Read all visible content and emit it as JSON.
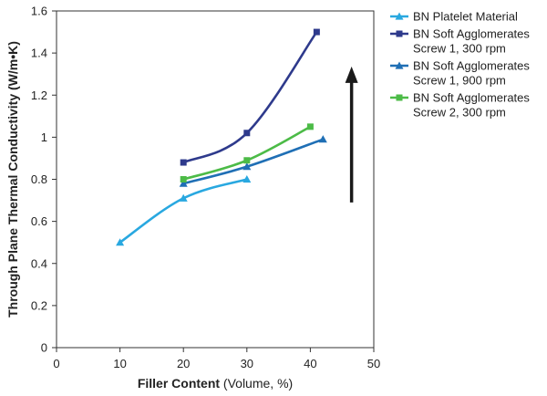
{
  "chart_data": {
    "type": "line",
    "title": "",
    "xlabel": {
      "bold": "Filler Content",
      "rest": " (Volume, %)"
    },
    "ylabel": "Through Plane Thermal Conductivity (W/m•K)",
    "xlim": [
      0,
      50
    ],
    "ylim": [
      0,
      1.6
    ],
    "xticks": [
      0,
      10,
      20,
      30,
      40,
      50
    ],
    "yticks": [
      0,
      0.2,
      0.4,
      0.6,
      0.8,
      1,
      1.2,
      1.4,
      1.6
    ],
    "ytick_labels": [
      "0",
      "0.2",
      "0.4",
      "0.6",
      "0.8",
      "1",
      "1.2",
      "1.4",
      "1.6"
    ],
    "grid": false,
    "legend_position": "right",
    "series": [
      {
        "name": "BN Platelet Material",
        "legend_lines": [
          "BN Platelet Material"
        ],
        "marker": "triangle",
        "color": "#29A8E0",
        "points": [
          [
            10,
            0.5
          ],
          [
            20,
            0.71
          ],
          [
            30,
            0.8
          ]
        ]
      },
      {
        "name": "BN Soft Agglomerates Screw 1, 300 rpm",
        "legend_lines": [
          "BN Soft Agglomerates",
          "Screw 1, 300 rpm"
        ],
        "marker": "square",
        "color": "#2E3A8C",
        "points": [
          [
            20,
            0.88
          ],
          [
            30,
            1.02
          ],
          [
            41,
            1.5
          ]
        ]
      },
      {
        "name": "BN Soft Agglomerates Screw 1, 900 rpm",
        "legend_lines": [
          "BN Soft Agglomerates",
          "Screw 1, 900 rpm"
        ],
        "marker": "triangle",
        "color": "#1F6FB5",
        "points": [
          [
            20,
            0.78
          ],
          [
            30,
            0.86
          ],
          [
            42,
            0.99
          ]
        ]
      },
      {
        "name": "BN Soft Agglomerates Screw 2, 300 rpm",
        "legend_lines": [
          "BN Soft Agglomerates",
          "Screw 2, 300 rpm"
        ],
        "marker": "square",
        "color": "#4CBB47",
        "points": [
          [
            20,
            0.8
          ],
          [
            30,
            0.89
          ],
          [
            40,
            1.05
          ]
        ]
      }
    ],
    "annotations": [
      {
        "type": "arrow",
        "direction": "up",
        "color": "#1A1A1A",
        "from": [
          46.5,
          0.69
        ],
        "to": [
          46.5,
          1.31
        ]
      }
    ]
  }
}
